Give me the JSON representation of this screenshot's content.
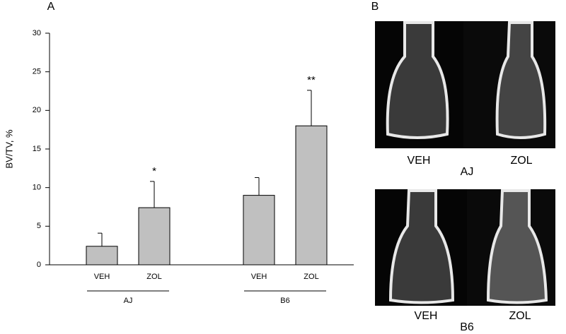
{
  "chart_data": {
    "type": "bar",
    "panel_label": "A",
    "y_label": "BV/TV, %",
    "categories": [
      "VEH",
      "ZOL",
      "VEH",
      "ZOL"
    ],
    "groups": [
      "AJ",
      "B6"
    ],
    "values": [
      2.4,
      7.4,
      9.0,
      18.0
    ],
    "errors": [
      1.7,
      3.4,
      2.3,
      4.6
    ],
    "annotations": [
      null,
      "*",
      null,
      "**"
    ],
    "color": "#c0c0c0",
    "ylim": [
      0,
      30
    ],
    "yticks": [
      0,
      5,
      10,
      15,
      20,
      25,
      30
    ]
  },
  "panel_b": {
    "panel_label": "B",
    "rows": [
      {
        "group": "AJ",
        "columns": [
          "VEH",
          "ZOL"
        ]
      },
      {
        "group": "B6",
        "columns": [
          "VEH",
          "ZOL"
        ]
      }
    ]
  }
}
